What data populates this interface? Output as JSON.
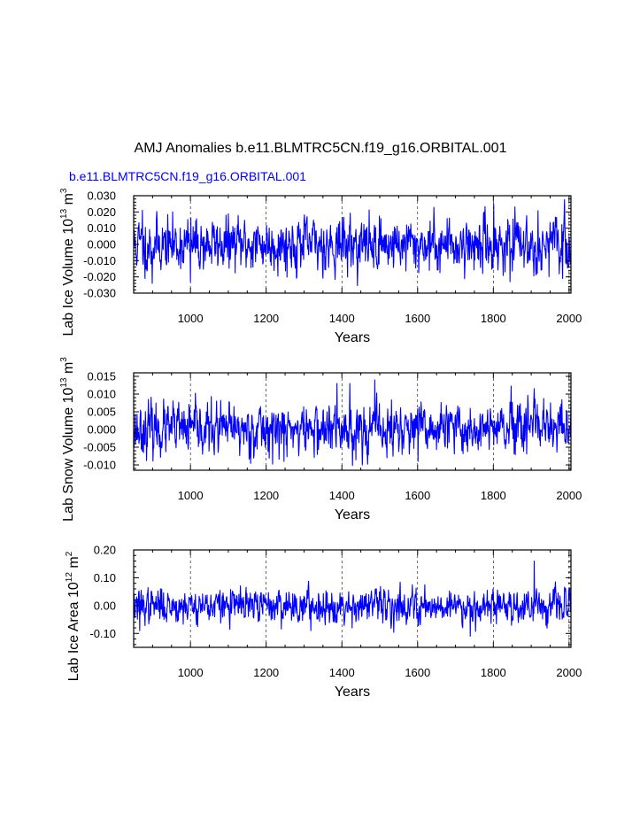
{
  "figure": {
    "title": "AMJ Anomalies b.e11.BLMTRC5CN.f19_g16.ORBITAL.001",
    "legend": "b.e11.BLMTRC5CN.f19_g16.ORBITAL.001",
    "colors": {
      "series": "#0000ff",
      "axis": "#000000",
      "grid": "#000000",
      "legend": "#0000ff"
    }
  },
  "chart_data": [
    {
      "type": "line",
      "name": "lab-ice-volume",
      "ylabel_main": "Lab Ice Volume 10",
      "ylabel_exp": "13",
      "ylabel_unit": " m",
      "ylabel_unit_exp": "3",
      "xlabel": "Years",
      "xlim": [
        850,
        2005
      ],
      "ylim": [
        -0.03,
        0.03
      ],
      "xticks": [
        1000,
        1200,
        1400,
        1600,
        1800,
        2000
      ],
      "xtick_labels": [
        "1000",
        "1200",
        "1400",
        "1600",
        "1800",
        "2000"
      ],
      "yticks": [
        -0.03,
        -0.02,
        -0.01,
        0.0,
        0.01,
        0.02,
        0.03
      ],
      "ytick_labels": [
        "-0.030",
        "-0.020",
        "-0.010",
        "0.000",
        "0.010",
        "0.020",
        "0.030"
      ],
      "grid_x": true,
      "series": [
        {
          "name": "b.e11.BLMTRC5CN.f19_g16.ORBITAL.001",
          "x_start": 850,
          "x_end": 2005,
          "n": 1156,
          "amplitude": 0.0075,
          "seed": 11,
          "peaks": [
            [
              873,
              0.021
            ],
            [
              880,
              -0.021
            ],
            [
              899,
              -0.024
            ],
            [
              1000,
              -0.023
            ],
            [
              1801,
              0.025
            ],
            [
              1844,
              -0.023
            ],
            [
              1983,
              -0.021
            ]
          ]
        }
      ]
    },
    {
      "type": "line",
      "name": "lab-snow-volume",
      "ylabel_main": "Lab Snow Volume 10",
      "ylabel_exp": "13",
      "ylabel_unit": " m",
      "ylabel_unit_exp": "3",
      "xlabel": "Years",
      "xlim": [
        850,
        2005
      ],
      "ylim": [
        -0.0115,
        0.016
      ],
      "xticks": [
        1000,
        1200,
        1400,
        1600,
        1800,
        2000
      ],
      "xtick_labels": [
        "1000",
        "1200",
        "1400",
        "1600",
        "1800",
        "2000"
      ],
      "yticks": [
        -0.01,
        -0.005,
        0.0,
        0.005,
        0.01,
        0.015
      ],
      "ytick_labels": [
        "-0.010",
        "-0.005",
        "0.000",
        "0.005",
        "0.010",
        "0.015"
      ],
      "grid_x": true,
      "series": [
        {
          "name": "b.e11.BLMTRC5CN.f19_g16.ORBITAL.001",
          "x_start": 850,
          "x_end": 2005,
          "n": 1156,
          "amplitude": 0.0033,
          "seed": 23,
          "peaks": [
            [
              1387,
              0.013
            ],
            [
              1421,
              0.013
            ],
            [
              1487,
              0.014
            ],
            [
              1519,
              -0.008
            ],
            [
              1601,
              -0.009
            ],
            [
              1247,
              -0.009
            ]
          ]
        }
      ]
    },
    {
      "type": "line",
      "name": "lab-ice-area",
      "ylabel_main": "Lab Ice Area 10",
      "ylabel_exp": "12",
      "ylabel_unit": " m",
      "ylabel_unit_exp": "2",
      "xlabel": "Years",
      "xlim": [
        850,
        2005
      ],
      "ylim": [
        -0.15,
        0.2
      ],
      "xticks": [
        1000,
        1200,
        1400,
        1600,
        1800,
        2000
      ],
      "xtick_labels": [
        "1000",
        "1200",
        "1400",
        "1600",
        "1800",
        "2000"
      ],
      "yticks": [
        -0.1,
        0.0,
        0.1,
        0.2
      ],
      "ytick_labels": [
        "-0.10",
        "0.00",
        "0.10",
        "0.20"
      ],
      "grid_x": true,
      "series": [
        {
          "name": "b.e11.BLMTRC5CN.f19_g16.ORBITAL.001",
          "x_start": 850,
          "x_end": 2005,
          "n": 1156,
          "amplitude": 0.028,
          "seed": 37,
          "peaks": [
            [
              1908,
              0.16
            ],
            [
              1739,
              -0.11
            ],
            [
              866,
              -0.09
            ],
            [
              1318,
              -0.09
            ]
          ]
        }
      ]
    }
  ]
}
